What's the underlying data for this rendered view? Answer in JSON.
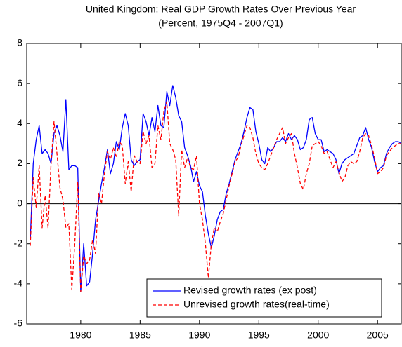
{
  "chart_data": {
    "type": "line",
    "title": "United Kingdom: Real GDP Growth Rates Over Previous Year",
    "subtitle": "(Percent, 1975Q4 - 2007Q1)",
    "x": [
      1975.75,
      1976,
      1976.25,
      1976.5,
      1976.75,
      1977,
      1977.25,
      1977.5,
      1977.75,
      1978,
      1978.25,
      1978.5,
      1978.75,
      1979,
      1979.25,
      1979.5,
      1979.75,
      1980,
      1980.25,
      1980.5,
      1980.75,
      1981,
      1981.25,
      1981.5,
      1981.75,
      1982,
      1982.25,
      1982.5,
      1982.75,
      1983,
      1983.25,
      1983.5,
      1983.75,
      1984,
      1984.25,
      1984.5,
      1984.75,
      1985,
      1985.25,
      1985.5,
      1985.75,
      1986,
      1986.25,
      1986.5,
      1986.75,
      1987,
      1987.25,
      1987.5,
      1987.75,
      1988,
      1988.25,
      1988.5,
      1988.75,
      1989,
      1989.25,
      1989.5,
      1989.75,
      1990,
      1990.25,
      1990.5,
      1990.75,
      1991,
      1991.25,
      1991.5,
      1991.75,
      1992,
      1992.25,
      1992.5,
      1992.75,
      1993,
      1993.25,
      1993.5,
      1993.75,
      1994,
      1994.25,
      1994.5,
      1994.75,
      1995,
      1995.25,
      1995.5,
      1995.75,
      1996,
      1996.25,
      1996.5,
      1996.75,
      1997,
      1997.25,
      1997.5,
      1997.75,
      1998,
      1998.25,
      1998.5,
      1998.75,
      1999,
      1999.25,
      1999.5,
      1999.75,
      2000,
      2000.25,
      2000.5,
      2000.75,
      2001,
      2001.25,
      2001.5,
      2001.75,
      2002,
      2002.25,
      2002.5,
      2002.75,
      2003,
      2003.25,
      2003.5,
      2003.75,
      2004,
      2004.25,
      2004.5,
      2004.75,
      2005,
      2005.25,
      2005.5,
      2005.75,
      2006,
      2006.25,
      2006.5,
      2006.75,
      2007
    ],
    "series": [
      {
        "name": "Revised growth rates (ex post)",
        "color": "#0000ff",
        "dashed": false,
        "values": [
          -1.8,
          2.0,
          3.2,
          3.9,
          2.5,
          2.7,
          2.5,
          2.0,
          3.5,
          3.9,
          3.4,
          2.6,
          5.2,
          1.7,
          1.9,
          1.9,
          1.8,
          -4.4,
          -2.0,
          -4.1,
          -3.9,
          -2.5,
          -0.8,
          0.1,
          1.0,
          1.8,
          2.7,
          1.5,
          2.0,
          3.1,
          2.7,
          3.8,
          4.5,
          3.9,
          2.2,
          1.9,
          2.1,
          2.2,
          4.5,
          4.1,
          3.4,
          4.3,
          3.6,
          4.9,
          3.9,
          3.8,
          5.6,
          4.9,
          5.9,
          5.3,
          4.4,
          4.1,
          2.8,
          2.4,
          1.9,
          1.1,
          1.6,
          0.9,
          0.6,
          -0.6,
          -1.5,
          -2.2,
          -1.6,
          -0.8,
          -0.4,
          -0.3,
          0.5,
          1.0,
          1.6,
          2.2,
          2.6,
          3.0,
          3.6,
          4.3,
          4.8,
          4.7,
          3.6,
          3.0,
          2.2,
          2.0,
          2.8,
          2.6,
          2.8,
          3.1,
          3.1,
          3.3,
          3.1,
          3.5,
          3.2,
          3.4,
          3.2,
          2.7,
          2.8,
          3.2,
          4.2,
          4.3,
          3.5,
          3.2,
          3.2,
          2.6,
          2.7,
          2.6,
          2.5,
          2.2,
          1.5,
          2.0,
          2.2,
          2.3,
          2.4,
          2.5,
          2.9,
          3.3,
          3.4,
          3.8,
          3.2,
          2.8,
          2.1,
          1.6,
          1.8,
          1.9,
          2.5,
          2.8,
          3.0,
          3.1,
          3.1,
          3.0
        ]
      },
      {
        "name": "Unrevised growth rates(real-time)",
        "color": "#ff0000",
        "dashed": true,
        "values": [
          -2.1,
          1.3,
          -0.2,
          1.9,
          -1.2,
          0.4,
          -1.2,
          2.0,
          4.1,
          2.5,
          0.8,
          0.2,
          -1.2,
          -1.0,
          -4.3,
          -2.0,
          1.1,
          -4.4,
          -2.6,
          -3.0,
          -2.8,
          -1.8,
          -2.5,
          0.5,
          0.0,
          1.5,
          2.6,
          2.2,
          2.8,
          2.3,
          3.1,
          2.9,
          1.0,
          2.1,
          0.6,
          2.4,
          2.1,
          2.0,
          3.6,
          3.0,
          3.4,
          1.8,
          2.0,
          3.9,
          3.2,
          4.6,
          5.1,
          3.0,
          2.7,
          2.2,
          -0.6,
          2.7,
          1.8,
          2.3,
          1.8,
          1.7,
          2.4,
          0.0,
          -0.8,
          -2.0,
          -3.7,
          -2.0,
          -1.2,
          -1.4,
          -0.9,
          -0.5,
          0.2,
          0.9,
          1.5,
          2.1,
          2.3,
          2.9,
          3.4,
          3.9,
          3.8,
          3.3,
          2.5,
          2.0,
          1.8,
          1.7,
          2.0,
          2.4,
          2.8,
          3.2,
          3.5,
          3.8,
          3.0,
          3.3,
          3.5,
          2.5,
          1.8,
          1.0,
          0.7,
          1.5,
          2.0,
          2.9,
          3.0,
          3.1,
          2.9,
          2.5,
          2.6,
          2.2,
          1.8,
          2.1,
          1.6,
          1.1,
          1.3,
          1.9,
          2.1,
          2.0,
          2.1,
          2.6,
          3.3,
          3.5,
          3.4,
          2.9,
          2.3,
          1.5,
          1.6,
          1.8,
          2.4,
          2.6,
          2.8,
          2.9,
          3.0,
          3.0
        ]
      }
    ],
    "xlim": [
      1975.45,
      2007.0
    ],
    "xticks": [
      1980,
      1985,
      1990,
      1995,
      2000,
      2005
    ],
    "ylim": [
      -6,
      8
    ],
    "yticks": [
      -6,
      -4,
      -2,
      0,
      2,
      4,
      6,
      8
    ],
    "zero_line": true,
    "grid": false,
    "legend": "lower right"
  }
}
